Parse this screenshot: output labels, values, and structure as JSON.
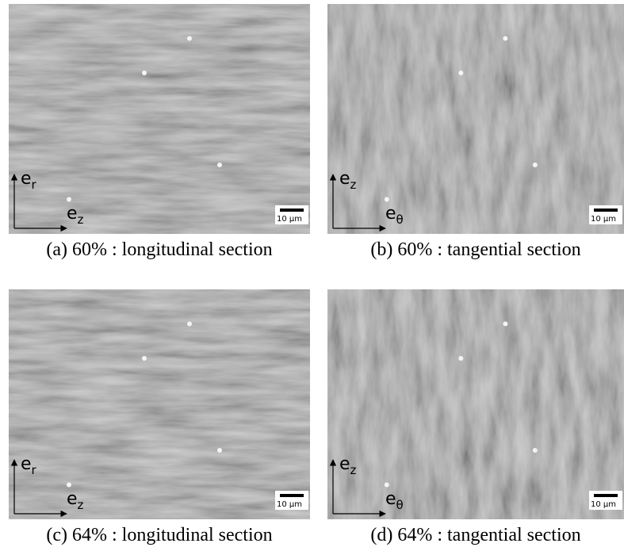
{
  "panels": [
    {
      "caption": "(a) 60% : longitudinal section",
      "scale_label": "10 µm",
      "axis_vertical": {
        "letter": "e",
        "sub": "r"
      },
      "axis_horizontal": {
        "letter": "e",
        "sub": "z"
      }
    },
    {
      "caption": "(b) 60% : tangential section",
      "scale_label": "10 µm",
      "axis_vertical": {
        "letter": "e",
        "sub": "z"
      },
      "axis_horizontal": {
        "letter": "e",
        "sub": "θ"
      }
    },
    {
      "caption": "(c) 64% : longitudinal section",
      "scale_label": "10 µm",
      "axis_vertical": {
        "letter": "e",
        "sub": "r"
      },
      "axis_horizontal": {
        "letter": "e",
        "sub": "z"
      }
    },
    {
      "caption": "(d) 64% : tangential section",
      "scale_label": "10 µm",
      "axis_vertical": {
        "letter": "e",
        "sub": "z"
      },
      "axis_horizontal": {
        "letter": "e",
        "sub": "θ"
      }
    }
  ]
}
